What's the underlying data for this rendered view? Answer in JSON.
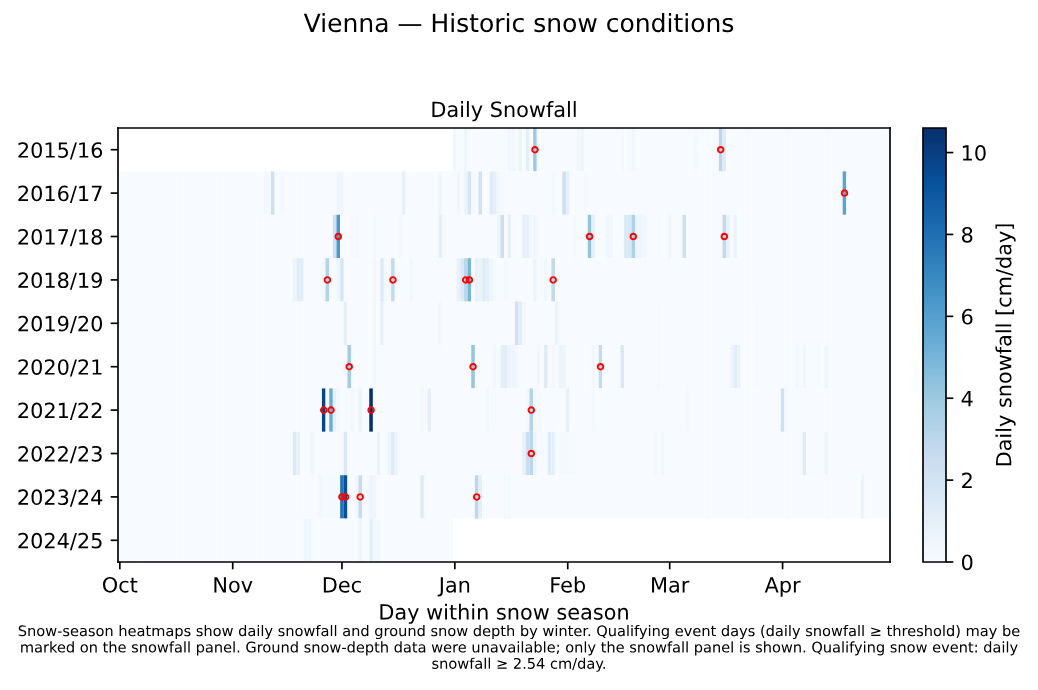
{
  "chart_data": {
    "type": "heatmap",
    "title": "Vienna — Historic snow conditions",
    "subtitle": "Daily Snowfall",
    "xlabel": "Day within snow season",
    "clabel": "Daily snowfall [cm/day]",
    "annotations": [
      "Snow-season heatmaps show daily snowfall and ground snow depth by winter. Qualifying event days (daily snowfall ≥ threshold) may be marked on the snowfall panel. Ground snow-depth data were unavailable; only the snowfall panel is shown. Qualifying snow event: daily snowfall ≥ 2.54 cm/day."
    ],
    "categories": [
      "Oct",
      null,
      null,
      null,
      null,
      null,
      null,
      null,
      null,
      null,
      null,
      null,
      null,
      null,
      null,
      null,
      null,
      null,
      null,
      null,
      null,
      null,
      null,
      null,
      null,
      null,
      null,
      null,
      null,
      null,
      null,
      "Nov",
      null,
      null,
      null,
      null,
      null,
      null,
      null,
      null,
      null,
      null,
      null,
      null,
      null,
      null,
      null,
      null,
      null,
      null,
      null,
      null,
      null,
      null,
      null,
      null,
      null,
      null,
      null,
      null,
      null,
      "Dec",
      null,
      null,
      null,
      null,
      null,
      null,
      null,
      null,
      null,
      null,
      null,
      null,
      null,
      null,
      null,
      null,
      null,
      null,
      null,
      null,
      null,
      null,
      null,
      null,
      null,
      null,
      null,
      null,
      null,
      null,
      "Jan",
      null,
      null,
      null,
      null,
      null,
      null,
      null,
      null,
      null,
      null,
      null,
      null,
      null,
      null,
      null,
      null,
      null,
      null,
      null,
      null,
      null,
      null,
      null,
      null,
      null,
      null,
      null,
      null,
      null,
      null,
      "Feb",
      null,
      null,
      null,
      null,
      null,
      null,
      null,
      null,
      null,
      null,
      null,
      null,
      null,
      null,
      null,
      null,
      null,
      null,
      null,
      null,
      null,
      null,
      null,
      null,
      null,
      null,
      null,
      "Mar",
      null,
      null,
      null,
      null,
      null,
      null,
      null,
      null,
      null,
      null,
      null,
      null,
      null,
      null,
      null,
      null,
      null,
      null,
      null,
      null,
      null,
      null,
      null,
      null,
      null,
      null,
      null,
      null,
      null,
      null,
      "Apr",
      null,
      null,
      null,
      null,
      null,
      null,
      null,
      null,
      null,
      null,
      null,
      null,
      null,
      null,
      null,
      null,
      null,
      null,
      null,
      null,
      null,
      null,
      null,
      null,
      null,
      null,
      null,
      null,
      null
    ],
    "y_categories": [
      "2015/16",
      "2016/17",
      "2017/18",
      "2018/19",
      "2019/20",
      "2020/21",
      "2021/22",
      "2022/23",
      "2023/24",
      "2024/25"
    ],
    "clim": [
      0,
      10.6
    ],
    "cticks": [
      0,
      2,
      4,
      6,
      8,
      10
    ],
    "cells": [
      [
        null,
        null,
        null,
        null,
        null,
        null,
        null,
        null,
        null,
        null,
        null,
        null,
        null,
        null,
        null,
        null,
        null,
        null,
        null,
        null,
        null,
        null,
        null,
        null,
        null,
        null,
        null,
        null,
        null,
        null,
        null,
        null,
        null,
        null,
        null,
        null,
        null,
        null,
        null,
        null,
        null,
        null,
        null,
        null,
        null,
        null,
        null,
        null,
        null,
        null,
        null,
        null,
        null,
        null,
        null,
        null,
        null,
        null,
        null,
        null,
        null,
        null,
        null,
        null,
        null,
        null,
        null,
        null,
        null,
        null,
        null,
        null,
        null,
        null,
        null,
        null,
        null,
        null,
        null,
        null,
        null,
        null,
        null,
        null,
        null,
        null,
        null,
        null,
        null,
        null,
        null,
        null,
        0.3,
        0,
        0,
        0.5,
        0,
        0,
        0,
        0,
        0,
        0,
        0,
        0,
        0,
        0,
        0,
        0.3,
        0.3,
        0,
        0.6,
        0,
        1.0,
        0,
        4.0,
        0,
        0,
        0,
        0,
        0,
        0,
        0,
        0,
        0,
        0,
        0,
        0.3,
        0.5,
        0,
        0,
        0,
        0,
        0,
        0,
        0,
        0,
        0,
        0,
        0.2,
        0,
        0.2,
        0.3,
        0,
        0,
        0,
        0,
        0,
        0,
        0,
        0,
        0,
        0,
        0,
        0,
        0,
        0,
        0,
        0,
        0.2,
        0,
        0,
        0,
        0,
        0,
        0,
        3.0,
        1.3,
        0,
        0,
        0,
        0,
        0,
        0,
        0,
        0,
        0,
        0,
        0,
        0,
        0,
        0,
        0,
        0,
        0,
        0,
        0,
        0,
        0,
        0,
        0,
        0,
        0,
        0,
        0,
        0,
        0,
        0,
        0,
        0,
        0,
        0,
        0,
        0,
        0,
        0,
        0,
        0,
        0,
        0,
        0,
        0,
        0
      ],
      [
        0,
        0,
        0,
        0,
        0,
        0,
        0,
        0,
        0,
        0,
        0,
        0,
        0,
        0,
        0,
        0,
        0,
        0,
        0,
        0,
        0,
        0,
        0,
        0,
        0,
        0,
        0,
        0,
        0,
        0,
        0,
        0,
        0,
        0,
        0,
        0,
        0,
        0,
        0,
        0,
        0.3,
        0.2,
        2.2,
        0.1,
        0.1,
        0.1,
        0,
        0,
        0,
        0,
        0,
        0,
        0,
        0,
        0,
        0,
        0,
        0,
        0,
        0,
        0.5,
        0.5,
        0,
        0,
        0,
        0,
        0,
        0,
        0,
        0,
        0,
        0,
        0,
        0,
        0,
        0,
        0,
        0,
        0.9,
        0,
        0,
        0,
        0,
        0,
        0,
        0,
        0,
        0,
        0.5,
        0,
        0,
        0,
        0,
        0.3,
        0,
        0.6,
        1.8,
        0.2,
        0,
        2.1,
        0,
        0,
        1.3,
        1.0,
        0.3,
        0.2,
        0,
        0,
        0,
        0,
        0,
        0,
        0,
        0,
        0,
        0,
        0,
        0,
        0,
        0.2,
        0,
        0,
        2.3,
        1.0,
        0,
        0,
        0,
        0,
        0.2,
        0,
        0,
        0,
        0,
        0,
        0,
        0,
        0,
        0,
        0,
        0,
        0,
        0,
        0,
        0,
        0,
        0,
        0,
        0,
        0,
        0,
        0,
        0,
        0,
        0,
        0,
        0,
        0,
        0,
        0,
        0,
        0,
        0,
        0,
        0,
        0,
        0,
        0,
        0,
        0,
        0,
        0,
        0,
        0,
        0,
        0,
        0,
        0,
        0,
        0,
        0,
        0,
        0,
        0,
        0,
        0,
        0,
        0,
        0,
        0,
        0,
        0,
        0,
        0,
        0,
        0,
        0,
        0,
        0,
        0,
        5.8,
        0,
        0,
        0,
        0,
        0,
        0,
        0,
        0,
        0,
        0,
        0,
        0
      ],
      [
        0,
        0,
        0,
        0,
        0,
        0,
        0,
        0,
        0,
        0,
        0,
        0,
        0,
        0,
        0,
        0,
        0,
        0,
        0,
        0,
        0,
        0,
        0,
        0,
        0,
        0,
        0,
        0,
        0,
        0,
        0,
        0,
        0,
        0,
        0,
        0,
        0,
        0,
        0,
        0,
        0,
        0,
        0,
        0,
        0,
        0,
        0,
        0,
        0,
        0,
        0,
        0,
        0,
        0,
        0,
        0,
        0,
        0,
        0,
        2.2,
        6.3,
        0,
        0,
        0,
        0.2,
        0.2,
        0,
        0,
        0,
        0,
        0.2,
        0,
        0,
        0,
        0,
        0,
        0,
        0.2,
        0,
        0,
        0,
        0,
        0,
        0,
        0,
        0,
        0,
        0,
        1.0,
        0.2,
        0,
        0,
        0,
        0,
        0,
        0,
        0,
        0,
        0,
        0,
        0,
        0,
        0,
        0,
        0.5,
        2.3,
        0,
        1.0,
        0,
        0,
        0,
        0.9,
        0.9,
        0.3,
        0.3,
        0,
        0,
        0,
        0,
        0,
        0,
        0,
        0,
        0,
        0,
        0.2,
        0,
        0,
        0,
        4.3,
        1.0,
        0,
        0,
        0,
        0.3,
        0.3,
        0,
        0,
        0,
        1.6,
        1.6,
        3.5,
        0.6,
        0.5,
        0.3,
        0,
        0,
        0,
        0.2,
        0,
        0,
        0.4,
        0,
        0,
        0,
        2.2,
        0,
        0,
        0,
        0,
        0,
        0,
        0,
        0,
        0,
        0,
        2.8,
        0.9,
        0,
        0.6,
        0,
        0,
        0,
        0,
        0,
        0,
        0,
        0,
        0,
        0,
        0,
        0,
        0,
        0,
        0,
        0,
        0,
        0,
        0,
        0,
        0,
        0,
        0,
        0,
        0,
        0,
        0,
        0,
        0,
        0,
        0,
        0,
        0,
        0,
        0,
        0,
        0,
        0,
        0,
        0,
        0,
        0
      ],
      [
        0,
        0,
        0,
        0,
        0,
        0,
        0,
        0,
        0,
        0,
        0,
        0,
        0,
        0,
        0,
        0,
        0,
        0,
        0,
        0,
        0,
        0,
        0,
        0,
        0,
        0,
        0,
        0,
        0,
        0,
        0,
        0,
        0,
        0,
        0,
        0,
        0,
        0,
        0,
        0,
        0,
        0,
        0,
        0,
        0,
        0,
        0,
        0,
        0.6,
        1.2,
        1.2,
        0,
        0,
        0,
        0,
        0,
        0.3,
        3.3,
        0,
        0,
        0.5,
        1.8,
        0,
        0,
        0,
        0,
        0,
        0,
        0,
        0,
        0.3,
        0,
        1.4,
        0.2,
        0.2,
        2.8,
        0,
        0,
        0,
        0,
        0.3,
        0,
        0,
        0,
        0,
        0,
        0,
        0,
        0,
        0,
        0,
        0,
        0,
        0.8,
        1.5,
        3.0,
        5.0,
        0,
        0.8,
        0.7,
        1.3,
        1.0,
        0.5,
        0.2,
        0,
        0,
        0.2,
        0,
        0,
        0,
        0,
        0,
        0,
        0,
        0.6,
        0,
        0,
        0.3,
        0,
        2.8,
        0,
        0,
        0,
        0,
        0,
        0,
        0,
        0,
        0,
        0,
        0,
        0,
        0,
        0,
        0,
        0,
        0,
        0,
        0,
        0,
        0,
        0,
        0,
        0,
        0,
        0,
        0,
        0,
        0,
        0,
        0,
        0,
        0,
        0,
        0,
        0,
        0,
        0,
        0,
        0,
        0,
        0,
        0,
        0,
        0,
        0,
        0,
        0,
        0,
        0,
        0,
        0,
        0,
        0,
        0,
        0,
        0,
        0,
        0,
        0,
        0,
        0,
        0,
        0,
        0,
        0,
        0,
        0,
        0,
        0,
        0,
        0,
        0,
        0,
        0,
        0,
        0,
        0,
        0,
        0,
        0,
        0,
        0,
        0,
        0,
        0,
        0,
        0,
        0,
        0,
        0,
        0
      ],
      [
        0,
        0,
        0,
        0,
        0,
        0,
        0,
        0,
        0,
        0,
        0,
        0,
        0,
        0,
        0,
        0,
        0,
        0,
        0,
        0,
        0,
        0,
        0,
        0,
        0,
        0,
        0,
        0,
        0,
        0,
        0,
        0,
        0,
        0,
        0,
        0,
        0,
        0,
        0,
        0,
        0,
        0,
        0,
        0,
        0,
        0,
        0,
        0,
        0,
        0,
        0,
        0,
        0,
        0,
        0,
        0,
        0,
        0,
        0,
        0,
        0,
        0,
        1.0,
        0,
        0,
        0,
        0,
        0,
        0,
        0,
        0.3,
        0,
        0.8,
        0,
        0,
        0,
        0,
        0,
        0,
        0,
        0,
        0,
        0,
        0,
        0,
        0,
        0,
        0,
        0.3,
        0,
        0,
        0,
        0,
        0,
        0,
        0,
        0,
        0,
        0,
        0,
        0,
        0,
        0,
        0,
        0,
        0,
        0,
        0,
        0,
        2.1,
        1.2,
        0.3,
        0,
        0,
        0,
        0,
        0,
        0,
        0,
        0,
        0.6,
        0,
        0,
        0,
        0,
        0,
        0,
        0,
        0,
        0,
        0,
        0,
        0,
        0,
        0,
        0,
        0,
        0,
        0,
        0,
        0,
        0,
        0,
        0,
        0,
        0,
        0,
        0,
        0.2,
        0,
        0,
        0,
        0,
        0,
        0,
        0,
        0,
        0,
        0,
        0,
        0,
        0,
        0,
        0,
        0,
        0,
        0,
        0,
        0,
        0,
        0,
        0,
        0,
        0,
        0,
        0.2,
        0,
        0,
        0,
        0,
        0,
        0,
        0,
        0,
        0,
        0,
        0,
        0,
        0,
        0,
        0,
        0,
        0,
        0,
        0,
        0,
        0,
        0,
        0,
        0,
        0,
        0,
        0,
        0,
        0,
        0,
        0,
        0,
        0,
        0,
        0,
        0
      ],
      [
        0,
        0,
        0,
        0,
        0,
        0,
        0,
        0,
        0,
        0,
        0,
        0,
        0,
        0,
        0,
        0,
        0,
        0,
        0,
        0,
        0,
        0,
        0,
        0,
        0,
        0,
        0,
        0,
        0,
        0,
        0,
        0,
        0,
        0,
        0,
        0,
        0,
        0,
        0,
        0,
        0,
        0,
        0,
        0,
        0,
        0,
        0,
        0,
        0,
        0,
        0,
        0,
        0,
        0,
        0,
        0,
        0,
        0,
        0,
        0,
        0,
        0,
        0,
        3.8,
        0,
        0,
        0,
        0,
        0,
        0,
        0.3,
        0,
        0,
        0,
        0,
        0,
        0,
        0,
        0,
        0,
        0,
        0,
        0,
        0,
        0,
        0,
        0,
        0,
        0,
        0,
        0,
        0,
        0,
        0,
        0,
        0,
        0,
        4.2,
        0,
        0,
        0,
        0,
        0,
        0.3,
        0,
        1.0,
        1.2,
        0.6,
        0.5,
        0.3,
        0,
        0,
        0,
        0,
        0,
        0.3,
        0,
        1.4,
        0,
        0.3,
        0,
        0.6,
        0.5,
        0,
        0,
        0,
        0,
        0,
        0,
        0,
        0.3,
        0,
        2.8,
        0,
        0,
        0,
        0,
        0,
        1.6,
        0,
        0,
        0,
        0,
        0,
        0,
        0,
        0,
        0,
        0.2,
        0,
        0,
        0,
        0,
        0,
        0,
        0,
        0,
        0,
        0,
        0,
        0,
        0,
        0,
        0,
        0,
        0,
        0,
        0,
        0.5,
        1.2,
        0.6,
        0,
        0,
        0,
        0,
        0.2,
        0,
        0,
        0,
        0,
        0,
        0,
        0,
        0,
        0,
        0,
        0.3,
        0,
        0.4,
        0,
        0,
        0,
        0.2,
        0,
        0.4,
        0,
        0,
        0,
        0,
        0,
        0,
        0,
        0,
        0,
        0,
        0,
        0,
        0,
        0,
        0,
        0,
        0
      ],
      [
        0,
        0,
        0,
        0,
        0,
        0,
        0,
        0,
        0,
        0,
        0,
        0,
        0,
        0,
        0,
        0,
        0,
        0,
        0,
        0,
        0,
        0,
        0,
        0,
        0,
        0,
        0,
        0,
        0,
        0,
        0,
        0,
        0,
        0,
        0,
        0,
        0,
        0,
        0,
        0,
        0,
        0,
        0,
        0,
        0,
        0,
        0,
        0,
        0,
        0,
        0,
        0,
        0,
        0,
        0,
        0,
        9.8,
        0.2,
        5.3,
        0.8,
        0.3,
        0,
        0,
        0,
        0.3,
        0,
        0.6,
        0,
        0,
        10.6,
        0.2,
        0,
        0,
        0,
        0,
        0,
        0,
        0,
        0,
        0,
        0,
        0,
        0,
        0.3,
        0,
        1.1,
        0,
        0,
        0,
        0,
        0,
        0,
        0,
        0,
        0,
        0,
        0,
        0,
        0,
        0,
        0,
        0.3,
        0,
        0,
        0,
        0,
        0,
        0,
        0,
        0,
        0,
        0,
        0.3,
        3.2,
        0.3,
        0.2,
        0,
        0,
        0,
        0,
        0,
        0,
        0,
        0.8,
        0,
        0,
        0,
        0,
        0,
        0,
        0.2,
        0,
        0,
        0,
        0,
        0,
        0,
        0,
        0,
        0,
        0,
        0,
        0,
        0,
        0,
        0,
        0,
        0,
        0,
        0,
        0,
        0,
        0,
        0,
        0,
        0,
        0.2,
        0,
        0,
        0,
        0,
        0,
        0,
        0,
        0,
        0,
        0,
        0,
        0,
        0,
        0,
        0,
        0,
        0,
        0,
        0,
        0,
        0,
        0,
        0,
        0,
        0,
        2.2,
        0.2,
        0,
        0,
        0,
        0,
        0,
        0,
        0,
        0,
        0,
        0,
        0,
        0,
        0,
        0,
        0,
        0,
        0,
        0,
        0,
        0,
        0,
        0,
        0,
        0,
        0,
        0,
        0,
        0
      ],
      [
        0,
        0,
        0,
        0,
        0,
        0,
        0,
        0,
        0,
        0,
        0,
        0,
        0,
        0,
        0,
        0,
        0,
        0,
        0,
        0,
        0,
        0,
        0,
        0,
        0,
        0,
        0,
        0,
        0,
        0,
        0,
        0,
        0,
        0,
        0,
        0,
        0,
        0,
        0,
        0,
        0,
        0,
        0,
        0,
        0,
        0,
        0,
        0,
        1.5,
        0.8,
        0,
        0,
        0,
        0.4,
        0,
        0,
        0,
        0,
        0,
        0,
        0,
        0,
        1.6,
        0,
        0,
        0,
        0,
        0,
        0,
        0,
        0,
        0.7,
        0,
        0,
        0.4,
        1.4,
        0.6,
        0,
        0,
        0,
        0,
        0,
        0,
        0,
        0,
        0,
        0,
        0,
        0,
        0,
        0,
        0,
        0,
        0,
        0,
        0,
        0,
        0,
        0,
        0,
        0,
        0,
        0,
        0,
        0,
        0,
        0,
        0,
        0,
        0,
        0,
        0.8,
        2.4,
        3.0,
        0.6,
        0,
        0,
        0,
        1.3,
        0.9,
        0,
        0.2,
        0.2,
        0.2,
        0.2,
        0.2,
        0,
        0,
        0,
        0,
        0,
        0,
        0,
        0,
        0,
        0,
        0,
        0,
        0,
        0,
        0,
        0,
        0,
        0,
        0,
        0,
        0,
        0.3,
        0,
        0.3,
        0,
        0,
        0,
        0,
        0,
        0,
        0,
        0,
        0,
        0,
        0,
        0,
        0,
        0,
        0,
        0,
        0,
        0,
        0,
        0,
        0,
        0,
        0,
        0,
        0,
        0,
        0,
        0,
        0,
        0,
        0,
        0,
        0,
        0,
        0,
        0,
        0,
        0,
        1.3,
        0,
        0,
        0,
        0,
        0,
        0.5,
        0,
        0,
        0,
        0,
        0,
        0,
        0,
        0,
        0,
        0,
        0,
        0,
        0,
        0,
        0,
        0,
        0
      ],
      [
        0,
        0,
        0,
        0,
        0,
        0,
        0,
        0,
        0,
        0,
        0,
        0,
        0,
        0,
        0,
        0,
        0,
        0,
        0,
        0,
        0,
        0,
        0,
        0,
        0,
        0,
        0,
        0,
        0,
        0,
        0,
        0,
        0,
        0,
        0,
        0,
        0,
        0,
        0,
        0,
        0,
        0,
        0,
        0,
        0,
        0,
        0,
        0,
        0,
        0,
        0,
        0,
        0,
        0,
        0,
        0.3,
        0.2,
        0.2,
        0.2,
        0.2,
        0.2,
        7.8,
        9.3,
        0,
        0,
        0.3,
        2.6,
        0.2,
        0.2,
        0.6,
        0.5,
        0,
        0,
        0,
        0,
        0,
        0,
        0,
        0,
        0,
        0,
        0,
        0,
        1.3,
        0,
        0,
        0,
        0,
        0,
        0,
        0,
        0,
        0,
        0,
        0,
        0,
        0,
        0,
        3.0,
        1.0,
        0,
        0,
        0,
        0,
        0,
        0,
        0.2,
        0.2,
        0,
        0,
        0,
        0,
        0,
        0,
        0,
        0,
        0,
        0,
        0,
        0,
        0,
        0,
        0,
        0,
        0,
        0,
        0,
        0,
        0,
        0,
        0,
        0,
        0,
        0,
        0,
        0,
        0,
        0,
        0,
        0,
        0,
        0,
        0,
        0,
        0,
        0,
        0,
        0,
        0,
        0,
        0,
        0,
        0,
        0,
        0,
        0,
        0,
        0,
        0,
        0,
        0,
        0,
        0,
        0,
        0,
        0,
        0,
        0,
        0,
        0,
        0,
        0,
        0,
        0,
        0,
        0,
        0,
        0,
        0,
        0,
        0,
        0,
        0,
        0,
        0,
        0,
        0,
        0,
        0,
        0,
        0,
        0,
        0,
        0,
        0,
        0,
        0,
        0,
        0,
        0,
        0,
        0,
        0,
        0,
        0.6,
        0,
        0,
        0,
        0,
        0,
        0,
        0
      ],
      [
        0,
        0,
        0,
        0,
        0,
        0,
        0,
        0,
        0,
        0,
        0,
        0,
        0,
        0,
        0,
        0,
        0,
        0,
        0,
        0,
        0,
        0,
        0,
        0,
        0,
        0,
        0,
        0,
        0,
        0,
        0,
        0,
        0,
        0,
        0,
        0,
        0,
        0,
        0,
        0,
        0,
        0,
        0,
        0,
        0,
        0,
        0,
        0,
        0,
        0,
        0,
        0.5,
        0.4,
        0.1,
        0,
        0,
        0,
        0,
        0,
        0,
        0,
        0,
        0,
        0,
        0,
        0,
        0.5,
        0,
        0,
        1.1,
        0.3,
        0.3,
        0,
        0,
        0,
        0,
        0,
        0,
        0,
        0,
        0,
        0,
        0,
        0,
        0,
        0,
        0,
        0,
        0,
        0,
        0,
        0,
        null,
        null,
        null,
        null,
        null,
        null,
        null,
        null,
        null,
        null,
        null,
        null,
        null,
        null,
        null,
        null,
        null,
        null,
        null,
        null,
        null,
        null,
        null,
        null,
        null,
        null,
        null,
        null,
        null,
        null,
        null,
        null,
        null,
        null,
        null,
        null,
        null,
        null,
        null,
        null,
        null,
        null,
        null,
        null,
        null,
        null,
        null,
        null,
        null,
        null,
        null,
        null,
        null,
        null,
        null,
        null,
        null,
        null,
        null,
        null,
        null,
        null,
        null,
        null,
        null,
        null,
        null,
        null,
        null,
        null,
        null,
        null,
        null,
        null,
        null,
        null,
        null,
        null,
        null,
        null,
        null,
        null,
        null,
        null,
        null,
        null,
        null,
        null,
        null,
        null,
        null,
        null,
        null,
        null,
        null,
        null,
        null,
        null,
        null,
        null,
        null,
        null,
        null,
        null,
        null,
        null,
        null,
        null,
        null,
        null,
        null,
        null,
        null,
        null,
        null,
        null,
        null,
        null,
        null,
        null
      ]
    ],
    "series": [
      {
        "type": "scatter",
        "color": "#ff0000",
        "marker": "circle",
        "values": [
          null,
          null,
          null,
          null,
          null,
          null,
          null,
          null,
          null,
          null,
          null,
          null,
          null,
          null,
          null,
          null,
          null,
          null,
          null,
          null,
          null,
          null,
          null,
          null,
          null,
          null,
          null,
          null,
          null,
          null,
          null,
          null,
          null,
          null,
          null,
          null,
          null,
          null,
          null,
          null,
          null,
          null,
          null,
          null,
          null,
          null,
          null,
          null,
          null,
          null,
          null,
          null,
          null,
          null,
          null,
          null,
          6,
          3,
          6,
          null,
          2,
          8,
          8,
          5,
          null,
          null,
          8,
          null,
          null,
          6,
          null,
          null,
          null,
          null,
          null,
          3,
          null,
          null,
          null,
          null,
          null,
          null,
          null,
          null,
          null,
          null,
          null,
          null,
          null,
          null,
          null,
          null,
          null,
          null,
          null,
          3,
          3,
          5,
          8,
          null,
          null,
          null,
          null,
          null,
          null,
          null,
          null,
          null,
          null,
          null,
          null,
          null,
          null,
          6,
          0,
          null,
          null,
          null,
          null,
          3,
          null,
          null,
          null,
          null,
          null,
          null,
          null,
          null,
          null,
          2,
          null,
          null,
          5,
          null,
          null,
          null,
          null,
          null,
          null,
          null,
          null,
          2,
          null,
          null,
          null,
          null,
          null,
          null,
          null,
          null,
          null,
          null,
          null,
          null,
          null,
          null,
          null,
          null,
          null,
          null,
          null,
          null,
          null,
          null,
          null,
          0,
          2,
          null,
          null,
          null,
          null,
          null,
          null,
          null,
          null,
          null,
          null,
          null,
          null,
          null,
          null,
          null,
          null,
          null,
          null,
          null,
          null,
          null,
          null,
          null,
          null,
          null,
          null,
          null,
          null,
          null,
          null,
          null,
          null,
          1,
          null,
          null,
          null,
          null,
          null,
          null,
          null,
          null,
          null,
          null,
          null,
          null
        ]
      },
      {
        "type": "scatter",
        "color": "#ff0000",
        "marker": "circle",
        "values": [
          null,
          null,
          null,
          null,
          null,
          null,
          null,
          null,
          null,
          null,
          null,
          null,
          null,
          null,
          null,
          null,
          null,
          null,
          null,
          null,
          null,
          null,
          null,
          null,
          null,
          null,
          null,
          null,
          null,
          null,
          null,
          null,
          null,
          null,
          null,
          null,
          null,
          null,
          null,
          null,
          null,
          null,
          null,
          null,
          null,
          null,
          null,
          null,
          null,
          null,
          null,
          null,
          null,
          null,
          null,
          null,
          null,
          null,
          null,
          null,
          null,
          null,
          null,
          null,
          null,
          null,
          null,
          null,
          null,
          null,
          null,
          null,
          null,
          null,
          null,
          null,
          null,
          null,
          null,
          null,
          null,
          null,
          null,
          null,
          null,
          null,
          null,
          null,
          null,
          null,
          null,
          null,
          null,
          null,
          null,
          null,
          null,
          null,
          null,
          null,
          null,
          null,
          null,
          null,
          null,
          null,
          null,
          null,
          null,
          null,
          null,
          null,
          null,
          7,
          null,
          null,
          null,
          null,
          null,
          null,
          null,
          null,
          null,
          null,
          null,
          null,
          null,
          null,
          null,
          null,
          null,
          null,
          null,
          null,
          null,
          null,
          null,
          null,
          null,
          null,
          null,
          null,
          null,
          null,
          null,
          null,
          null,
          null,
          null,
          null,
          null,
          null,
          null,
          null,
          null,
          null,
          null,
          null,
          null,
          null,
          null,
          null,
          null,
          null,
          null,
          null,
          null,
          null,
          null,
          null,
          null,
          null,
          null,
          null,
          null,
          null,
          null,
          null,
          null,
          null,
          null,
          null,
          null,
          null,
          null,
          null,
          null,
          null,
          null,
          null,
          null,
          null,
          null,
          null,
          null,
          null,
          null,
          null,
          null,
          null,
          null,
          null,
          null,
          null,
          null,
          null,
          null,
          null,
          null,
          null,
          null,
          null
        ]
      }
    ]
  }
}
